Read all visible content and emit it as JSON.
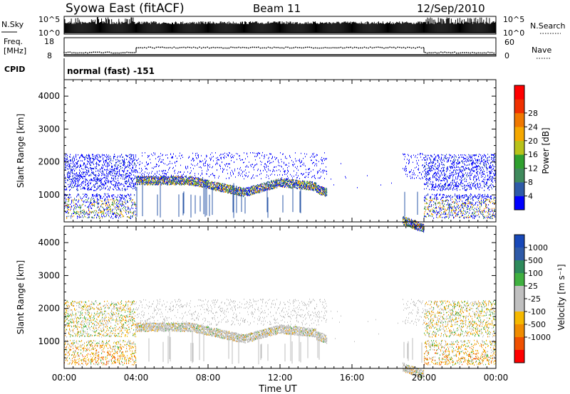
{
  "header": {
    "station": "Syowa East (fitACF)",
    "beam": "Beam 11",
    "date": "12/Sep/2010"
  },
  "top_panels": {
    "nsky": {
      "label": "N.Sky",
      "y_top": "10^5",
      "y_bottom": "10^0",
      "right_label": "N.Search",
      "right_top": "10^5",
      "right_bottom": "10^0"
    },
    "freq": {
      "label_line1": "Freq.",
      "label_line2": "[MHz]",
      "y_top": "18",
      "y_bottom": "8",
      "right_label": "Nave",
      "right_top": "60",
      "right_bottom": "0"
    },
    "cpid": {
      "label": "CPID",
      "value": "normal (fast) -151"
    }
  },
  "colors": {
    "power": [
      "#0000ff",
      "#2e5aa8",
      "#3f8a5c",
      "#2fa02f",
      "#b8c21a",
      "#f5a800",
      "#f07800",
      "#f03000",
      "#ff0000"
    ],
    "velocity": [
      "#ff0000",
      "#f05000",
      "#f08c00",
      "#f5b800",
      "#c0c0c0",
      "#c0c0c0",
      "#40b040",
      "#2e8a5c",
      "#2e5aa8",
      "#1848b8"
    ],
    "gray_scatter": "#bebebe"
  },
  "chart_data": [
    {
      "type": "heatmap",
      "name_panel": "power",
      "ylabel": "Slant Range [km]",
      "yticks": [
        "1000",
        "2000",
        "3000",
        "4000"
      ],
      "xticks": [
        "00:00",
        "04:00",
        "08:00",
        "12:00",
        "16:00",
        "20:00",
        "00:00"
      ],
      "colorbar_label": "Power [dB]",
      "colorbar_ticks": [
        "4",
        "8",
        "12",
        "16",
        "20",
        "24",
        "28"
      ],
      "xlim_hours": [
        0,
        24
      ],
      "ylim_km": [
        180,
        4500
      ]
    },
    {
      "type": "heatmap",
      "name_panel": "velocity",
      "ylabel": "Slant Range [km]",
      "yticks": [
        "1000",
        "2000",
        "3000",
        "4000"
      ],
      "xticks": [
        "00:00",
        "04:00",
        "08:00",
        "12:00",
        "16:00",
        "20:00",
        "00:00"
      ],
      "xlabel": "Time UT",
      "colorbar_label": "Velocity [m s⁻¹]",
      "colorbar_ticks": [
        "1000",
        "500",
        "100",
        "25",
        "-25",
        "-100",
        "-500",
        "-1000"
      ],
      "xlim_hours": [
        0,
        24
      ],
      "ylim_km": [
        180,
        4500
      ]
    }
  ]
}
